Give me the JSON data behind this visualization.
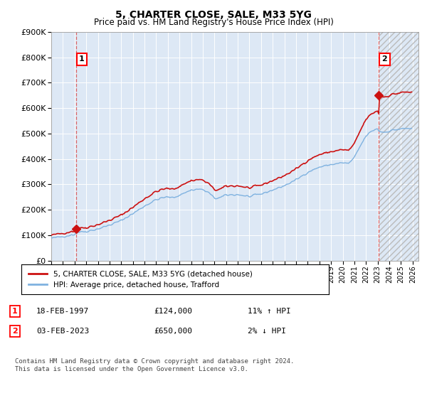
{
  "title": "5, CHARTER CLOSE, SALE, M33 5YG",
  "subtitle": "Price paid vs. HM Land Registry's House Price Index (HPI)",
  "ytick_vals": [
    0,
    100000,
    200000,
    300000,
    400000,
    500000,
    600000,
    700000,
    800000,
    900000
  ],
  "ylim": [
    0,
    900000
  ],
  "xlim_start": 1995.0,
  "xlim_end": 2026.5,
  "background_color": "#dde8f5",
  "grid_color": "#ffffff",
  "sale1_x": 1997.12,
  "sale1_price": 124000,
  "sale2_x": 2023.09,
  "sale2_price": 650000,
  "legend_line1": "5, CHARTER CLOSE, SALE, M33 5YG (detached house)",
  "legend_line2": "HPI: Average price, detached house, Trafford",
  "row1_num": "1",
  "row1_date": "18-FEB-1997",
  "row1_price": "£124,000",
  "row1_hpi": "11% ↑ HPI",
  "row2_num": "2",
  "row2_date": "03-FEB-2023",
  "row2_price": "£650,000",
  "row2_hpi": "2% ↓ HPI",
  "footer": "Contains HM Land Registry data © Crown copyright and database right 2024.\nThis data is licensed under the Open Government Licence v3.0.",
  "hpi_color": "#7fb2e0",
  "price_color": "#cc1111",
  "dashed_color": "#dd4444",
  "hatch_color": "#cccccc"
}
